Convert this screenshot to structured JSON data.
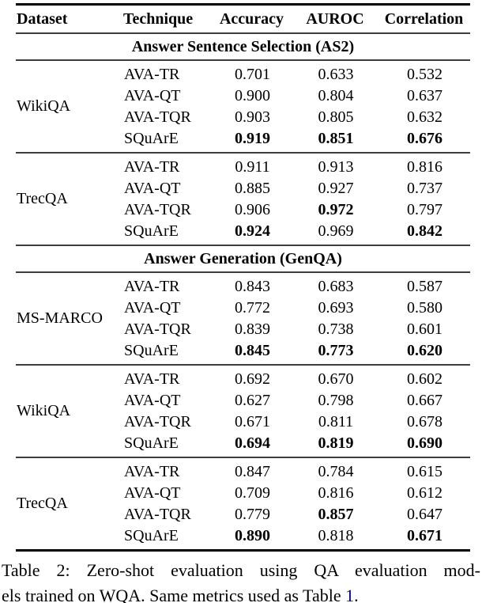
{
  "table": {
    "columns": [
      "Dataset",
      "Technique",
      "Accuracy",
      "AUROC",
      "Correlation"
    ],
    "sections": [
      {
        "title": "Answer Sentence Selection (AS2)",
        "groups": [
          {
            "dataset": "WikiQA",
            "rows": [
              {
                "technique": "AVA-TR",
                "accuracy": "0.701",
                "auroc": "0.633",
                "correlation": "0.532",
                "bold": []
              },
              {
                "technique": "AVA-QT",
                "accuracy": "0.900",
                "auroc": "0.804",
                "correlation": "0.637",
                "bold": []
              },
              {
                "technique": "AVA-TQR",
                "accuracy": "0.903",
                "auroc": "0.805",
                "correlation": "0.632",
                "bold": []
              },
              {
                "technique": "SQuArE",
                "accuracy": "0.919",
                "auroc": "0.851",
                "correlation": "0.676",
                "bold": [
                  "accuracy",
                  "auroc",
                  "correlation"
                ]
              }
            ]
          },
          {
            "dataset": "TrecQA",
            "rows": [
              {
                "technique": "AVA-TR",
                "accuracy": "0.911",
                "auroc": "0.913",
                "correlation": "0.816",
                "bold": []
              },
              {
                "technique": "AVA-QT",
                "accuracy": "0.885",
                "auroc": "0.927",
                "correlation": "0.737",
                "bold": []
              },
              {
                "technique": "AVA-TQR",
                "accuracy": "0.906",
                "auroc": "0.972",
                "correlation": "0.797",
                "bold": [
                  "auroc"
                ]
              },
              {
                "technique": "SQuArE",
                "accuracy": "0.924",
                "auroc": "0.969",
                "correlation": "0.842",
                "bold": [
                  "accuracy",
                  "correlation"
                ]
              }
            ]
          }
        ]
      },
      {
        "title": "Answer Generation (GenQA)",
        "groups": [
          {
            "dataset": "MS-MARCO",
            "rows": [
              {
                "technique": "AVA-TR",
                "accuracy": "0.843",
                "auroc": "0.683",
                "correlation": "0.587",
                "bold": []
              },
              {
                "technique": "AVA-QT",
                "accuracy": "0.772",
                "auroc": "0.693",
                "correlation": "0.580",
                "bold": []
              },
              {
                "technique": "AVA-TQR",
                "accuracy": "0.839",
                "auroc": "0.738",
                "correlation": "0.601",
                "bold": []
              },
              {
                "technique": "SQuArE",
                "accuracy": "0.845",
                "auroc": "0.773",
                "correlation": "0.620",
                "bold": [
                  "accuracy",
                  "auroc",
                  "correlation"
                ]
              }
            ]
          },
          {
            "dataset": "WikiQA",
            "rows": [
              {
                "technique": "AVA-TR",
                "accuracy": "0.692",
                "auroc": "0.670",
                "correlation": "0.602",
                "bold": []
              },
              {
                "technique": "AVA-QT",
                "accuracy": "0.627",
                "auroc": "0.798",
                "correlation": "0.667",
                "bold": []
              },
              {
                "technique": "AVA-TQR",
                "accuracy": "0.671",
                "auroc": "0.811",
                "correlation": "0.678",
                "bold": []
              },
              {
                "technique": "SQuArE",
                "accuracy": "0.694",
                "auroc": "0.819",
                "correlation": "0.690",
                "bold": [
                  "accuracy",
                  "auroc",
                  "correlation"
                ]
              }
            ]
          },
          {
            "dataset": "TrecQA",
            "rows": [
              {
                "technique": "AVA-TR",
                "accuracy": "0.847",
                "auroc": "0.784",
                "correlation": "0.615",
                "bold": []
              },
              {
                "technique": "AVA-QT",
                "accuracy": "0.709",
                "auroc": "0.816",
                "correlation": "0.612",
                "bold": []
              },
              {
                "technique": "AVA-TQR",
                "accuracy": "0.779",
                "auroc": "0.857",
                "correlation": "0.647",
                "bold": [
                  "auroc"
                ]
              },
              {
                "technique": "SQuArE",
                "accuracy": "0.890",
                "auroc": "0.818",
                "correlation": "0.671",
                "bold": [
                  "accuracy",
                  "correlation"
                ]
              }
            ]
          }
        ]
      }
    ]
  },
  "caption": {
    "line1": "Table 2: Zero-shot evaluation using QA evaluation mod-",
    "line2_text": "els trained on WQA. Same metrics used as Table ",
    "line2_link": "1",
    "line2_suffix": "."
  },
  "colors": {
    "text": "#000000",
    "link": "#00008B",
    "rule_heavy": "#000000",
    "rule_light": "#3d3d3d"
  }
}
